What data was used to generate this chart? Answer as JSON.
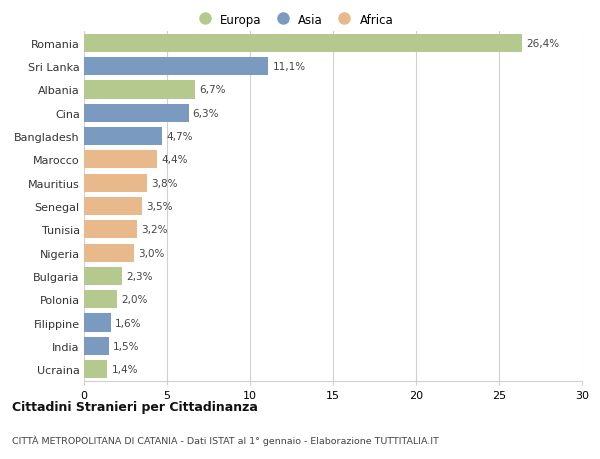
{
  "countries": [
    "Romania",
    "Sri Lanka",
    "Albania",
    "Cina",
    "Bangladesh",
    "Marocco",
    "Mauritius",
    "Senegal",
    "Tunisia",
    "Nigeria",
    "Bulgaria",
    "Polonia",
    "Filippine",
    "India",
    "Ucraina"
  ],
  "values": [
    26.4,
    11.1,
    6.7,
    6.3,
    4.7,
    4.4,
    3.8,
    3.5,
    3.2,
    3.0,
    2.3,
    2.0,
    1.6,
    1.5,
    1.4
  ],
  "labels": [
    "26,4%",
    "11,1%",
    "6,7%",
    "6,3%",
    "4,7%",
    "4,4%",
    "3,8%",
    "3,5%",
    "3,2%",
    "3,0%",
    "2,3%",
    "2,0%",
    "1,6%",
    "1,5%",
    "1,4%"
  ],
  "continents": [
    "Europa",
    "Asia",
    "Europa",
    "Asia",
    "Asia",
    "Africa",
    "Africa",
    "Africa",
    "Africa",
    "Africa",
    "Europa",
    "Europa",
    "Asia",
    "Asia",
    "Europa"
  ],
  "colors": {
    "Europa": "#b5c98e",
    "Asia": "#7a9bbf",
    "Africa": "#e8b98a"
  },
  "title1": "Cittadini Stranieri per Cittadinanza",
  "title2": "CITTÀ METROPOLITANA DI CATANIA - Dati ISTAT al 1° gennaio - Elaborazione TUTTITALIA.IT",
  "xlim": [
    0,
    30
  ],
  "xticks": [
    0,
    5,
    10,
    15,
    20,
    25,
    30
  ],
  "background_color": "#ffffff",
  "grid_color": "#d0d0d0",
  "bar_height": 0.78
}
